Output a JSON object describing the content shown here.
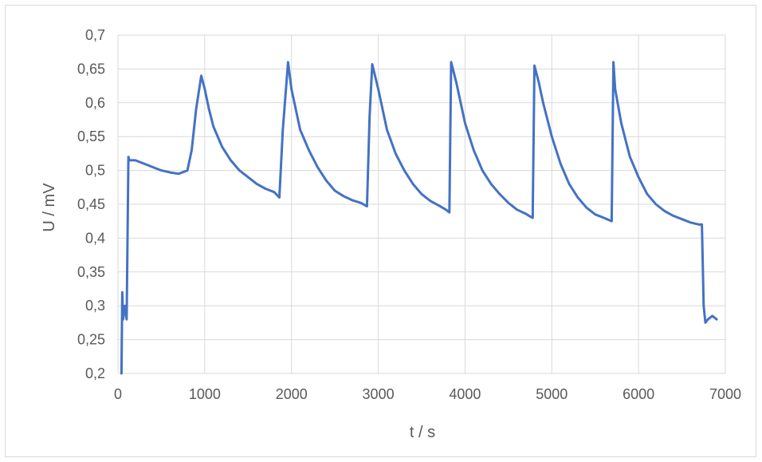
{
  "chart_data": {
    "type": "line",
    "title": "",
    "xlabel": "t / s",
    "ylabel": "U / mV",
    "xlim": [
      0,
      7000
    ],
    "ylim": [
      0.2,
      0.7
    ],
    "x_ticks": [
      0,
      1000,
      2000,
      3000,
      4000,
      5000,
      6000,
      7000
    ],
    "y_ticks": [
      0.2,
      0.25,
      0.3,
      0.35,
      0.4,
      0.45,
      0.5,
      0.55,
      0.6,
      0.65,
      0.7
    ],
    "x_tick_labels": [
      "0",
      "1000",
      "2000",
      "3000",
      "4000",
      "5000",
      "6000",
      "7000"
    ],
    "y_tick_labels": [
      "0,2",
      "0,25",
      "0,3",
      "0,35",
      "0,4",
      "0,45",
      "0,5",
      "0,55",
      "0,6",
      "0,65",
      "0,7"
    ],
    "grid": true,
    "legend": "none",
    "series": [
      {
        "color": "#4472c4",
        "x": [
          40,
          50,
          60,
          80,
          100,
          110,
          120,
          130,
          200,
          300,
          400,
          500,
          600,
          700,
          800,
          850,
          900,
          960,
          1000,
          1050,
          1100,
          1200,
          1300,
          1400,
          1500,
          1600,
          1700,
          1800,
          1860,
          1900,
          1960,
          2000,
          2100,
          2200,
          2300,
          2400,
          2500,
          2600,
          2700,
          2800,
          2870,
          2900,
          2930,
          3000,
          3100,
          3200,
          3300,
          3400,
          3500,
          3600,
          3700,
          3780,
          3820,
          3840,
          3900,
          4000,
          4100,
          4200,
          4300,
          4400,
          4500,
          4600,
          4700,
          4750,
          4780,
          4800,
          4850,
          4900,
          5000,
          5100,
          5200,
          5300,
          5400,
          5500,
          5600,
          5690,
          5710,
          5730,
          5800,
          5900,
          6000,
          6100,
          6200,
          6300,
          6400,
          6500,
          6600,
          6700,
          6730,
          6750,
          6770,
          6800,
          6850,
          6900
        ],
        "y": [
          0.2,
          0.32,
          0.28,
          0.3,
          0.28,
          0.4,
          0.52,
          0.515,
          0.515,
          0.51,
          0.505,
          0.5,
          0.497,
          0.495,
          0.5,
          0.53,
          0.59,
          0.64,
          0.62,
          0.59,
          0.565,
          0.535,
          0.515,
          0.5,
          0.49,
          0.48,
          0.473,
          0.468,
          0.46,
          0.56,
          0.66,
          0.62,
          0.56,
          0.53,
          0.505,
          0.485,
          0.47,
          0.462,
          0.456,
          0.452,
          0.447,
          0.58,
          0.657,
          0.62,
          0.56,
          0.525,
          0.5,
          0.48,
          0.465,
          0.455,
          0.448,
          0.442,
          0.438,
          0.66,
          0.63,
          0.57,
          0.53,
          0.5,
          0.48,
          0.465,
          0.452,
          0.442,
          0.436,
          0.432,
          0.43,
          0.655,
          0.63,
          0.6,
          0.55,
          0.51,
          0.48,
          0.46,
          0.445,
          0.435,
          0.43,
          0.425,
          0.66,
          0.62,
          0.57,
          0.52,
          0.49,
          0.465,
          0.45,
          0.44,
          0.433,
          0.428,
          0.423,
          0.42,
          0.42,
          0.3,
          0.275,
          0.28,
          0.285,
          0.28
        ]
      }
    ]
  }
}
